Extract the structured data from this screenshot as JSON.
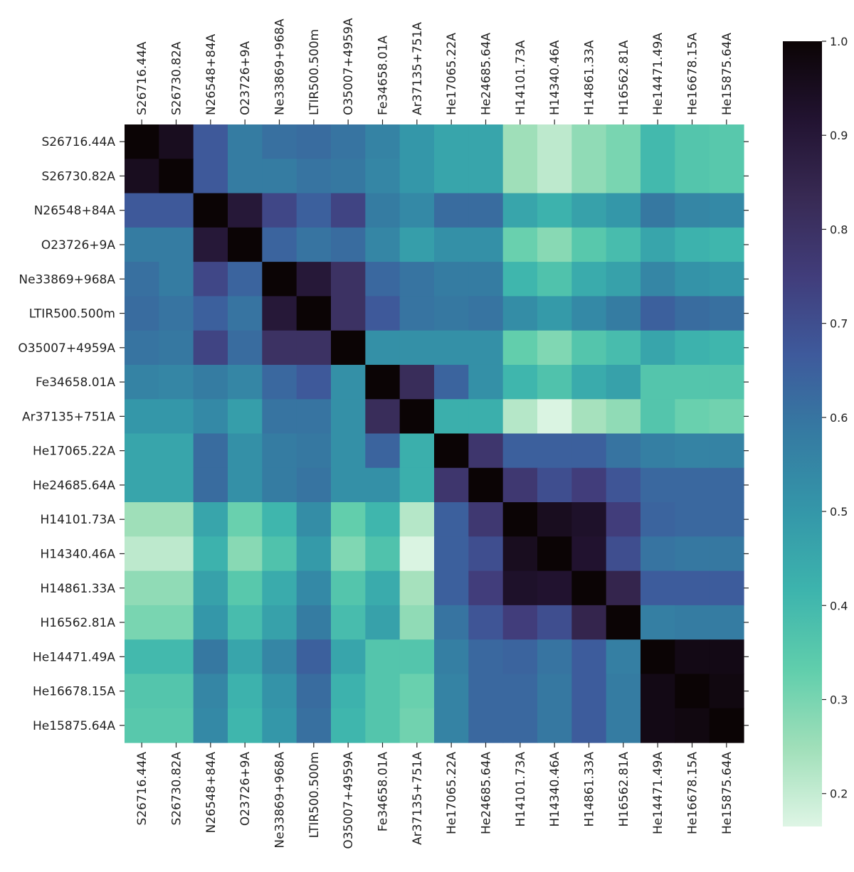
{
  "chart_data": {
    "type": "heatmap",
    "title": "",
    "labels": [
      "S26716.44A",
      "S26730.82A",
      "N26548+84A",
      "O23726+9A",
      "Ne33869+968A",
      "LTIR500.500m",
      "O35007+4959A",
      "Fe34658.01A",
      "Ar37135+751A",
      "He17065.22A",
      "He24685.64A",
      "H14101.73A",
      "H14340.46A",
      "H14861.33A",
      "H16562.81A",
      "He14471.49A",
      "He16678.15A",
      "He15875.64A"
    ],
    "values": [
      [
        1.0,
        0.95,
        0.67,
        0.58,
        0.61,
        0.62,
        0.6,
        0.56,
        0.5,
        0.46,
        0.46,
        0.25,
        0.21,
        0.27,
        0.3,
        0.4,
        0.36,
        0.35
      ],
      [
        0.95,
        1.0,
        0.67,
        0.58,
        0.58,
        0.6,
        0.59,
        0.55,
        0.5,
        0.46,
        0.46,
        0.25,
        0.21,
        0.27,
        0.3,
        0.4,
        0.36,
        0.35
      ],
      [
        0.67,
        0.67,
        1.0,
        0.9,
        0.72,
        0.65,
        0.73,
        0.58,
        0.54,
        0.62,
        0.62,
        0.46,
        0.42,
        0.47,
        0.5,
        0.59,
        0.55,
        0.54
      ],
      [
        0.58,
        0.58,
        0.9,
        1.0,
        0.64,
        0.6,
        0.62,
        0.55,
        0.48,
        0.52,
        0.52,
        0.32,
        0.28,
        0.35,
        0.39,
        0.46,
        0.42,
        0.41
      ],
      [
        0.61,
        0.58,
        0.72,
        0.64,
        1.0,
        0.9,
        0.8,
        0.63,
        0.6,
        0.58,
        0.58,
        0.41,
        0.37,
        0.44,
        0.47,
        0.55,
        0.51,
        0.5
      ],
      [
        0.62,
        0.6,
        0.65,
        0.6,
        0.9,
        1.0,
        0.8,
        0.67,
        0.6,
        0.59,
        0.6,
        0.53,
        0.49,
        0.54,
        0.58,
        0.65,
        0.62,
        0.61
      ],
      [
        0.6,
        0.59,
        0.73,
        0.62,
        0.8,
        0.8,
        1.0,
        0.52,
        0.52,
        0.52,
        0.52,
        0.33,
        0.29,
        0.36,
        0.39,
        0.46,
        0.42,
        0.41
      ],
      [
        0.56,
        0.55,
        0.58,
        0.55,
        0.63,
        0.67,
        0.52,
        1.0,
        0.82,
        0.64,
        0.52,
        0.41,
        0.37,
        0.44,
        0.47,
        0.36,
        0.36,
        0.36
      ],
      [
        0.5,
        0.5,
        0.54,
        0.48,
        0.6,
        0.6,
        0.52,
        0.82,
        1.0,
        0.43,
        0.43,
        0.22,
        0.17,
        0.24,
        0.27,
        0.36,
        0.32,
        0.31
      ],
      [
        0.46,
        0.46,
        0.62,
        0.52,
        0.58,
        0.59,
        0.52,
        0.64,
        0.43,
        1.0,
        0.78,
        0.65,
        0.65,
        0.65,
        0.6,
        0.57,
        0.56,
        0.56
      ],
      [
        0.46,
        0.46,
        0.62,
        0.52,
        0.58,
        0.6,
        0.52,
        0.52,
        0.43,
        0.78,
        1.0,
        0.77,
        0.7,
        0.75,
        0.68,
        0.63,
        0.63,
        0.63
      ],
      [
        0.25,
        0.25,
        0.46,
        0.32,
        0.41,
        0.53,
        0.33,
        0.41,
        0.22,
        0.65,
        0.77,
        1.0,
        0.95,
        0.93,
        0.75,
        0.64,
        0.63,
        0.63
      ],
      [
        0.21,
        0.21,
        0.42,
        0.28,
        0.37,
        0.49,
        0.29,
        0.37,
        0.17,
        0.65,
        0.7,
        0.95,
        1.0,
        0.92,
        0.7,
        0.6,
        0.59,
        0.59
      ],
      [
        0.27,
        0.27,
        0.47,
        0.35,
        0.44,
        0.54,
        0.36,
        0.44,
        0.24,
        0.65,
        0.75,
        0.93,
        0.92,
        1.0,
        0.85,
        0.66,
        0.66,
        0.66
      ],
      [
        0.3,
        0.3,
        0.5,
        0.39,
        0.47,
        0.58,
        0.39,
        0.47,
        0.27,
        0.6,
        0.68,
        0.75,
        0.7,
        0.85,
        1.0,
        0.57,
        0.58,
        0.58
      ],
      [
        0.4,
        0.4,
        0.59,
        0.46,
        0.55,
        0.65,
        0.46,
        0.36,
        0.36,
        0.57,
        0.63,
        0.64,
        0.6,
        0.66,
        0.57,
        1.0,
        0.97,
        0.97
      ],
      [
        0.36,
        0.36,
        0.55,
        0.42,
        0.51,
        0.62,
        0.42,
        0.36,
        0.32,
        0.56,
        0.63,
        0.63,
        0.59,
        0.66,
        0.58,
        0.97,
        1.0,
        0.98
      ],
      [
        0.35,
        0.35,
        0.54,
        0.41,
        0.5,
        0.61,
        0.41,
        0.36,
        0.31,
        0.56,
        0.63,
        0.63,
        0.59,
        0.66,
        0.58,
        0.97,
        0.98,
        1.0
      ]
    ],
    "colorbar": {
      "range": [
        0.165,
        1.0
      ],
      "ticks": [
        0.2,
        0.3,
        0.4,
        0.5,
        0.6,
        0.7,
        0.8,
        0.9,
        1.0
      ],
      "tick_labels": [
        "0.2",
        "0.3",
        "0.4",
        "0.5",
        "0.6",
        "0.7",
        "0.8",
        "0.9",
        "1.0"
      ],
      "colormap": "mako_r",
      "stops": [
        {
          "v": 0.0,
          "color": "#def5e5"
        },
        {
          "v": 0.1,
          "color": "#a0dfb9"
        },
        {
          "v": 0.2,
          "color": "#60ceac"
        },
        {
          "v": 0.3,
          "color": "#3db4ad"
        },
        {
          "v": 0.4,
          "color": "#3497a9"
        },
        {
          "v": 0.5,
          "color": "#357ba2"
        },
        {
          "v": 0.6,
          "color": "#3e5a9c"
        },
        {
          "v": 0.7,
          "color": "#413d7b"
        },
        {
          "v": 0.8,
          "color": "#382a54"
        },
        {
          "v": 0.9,
          "color": "#221331"
        },
        {
          "v": 1.0,
          "color": "#0b0405"
        }
      ]
    },
    "xlabel": "",
    "ylabel": "",
    "grid": false,
    "x_tick_labels_top": true,
    "x_tick_labels_bottom": true
  }
}
